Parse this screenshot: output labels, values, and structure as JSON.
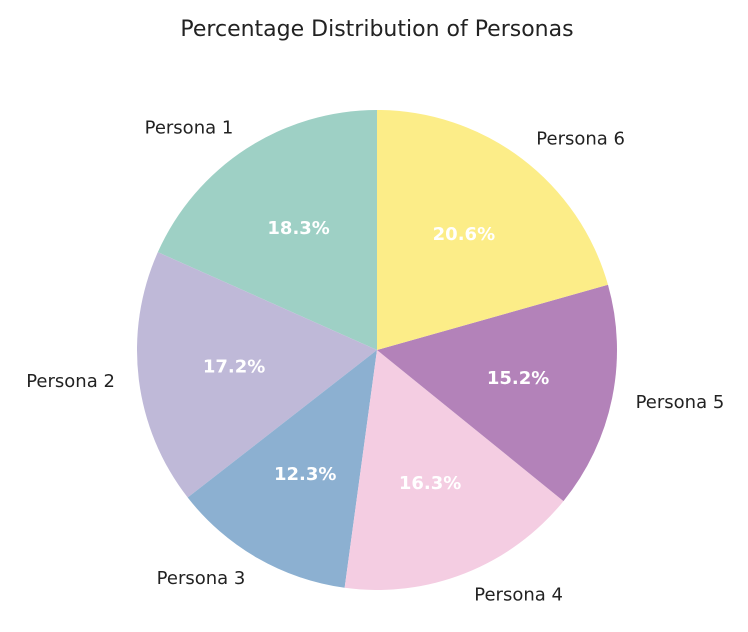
{
  "chart_data": {
    "type": "pie",
    "title": "Percentage Distribution of Personas",
    "categories": [
      "Persona 1",
      "Persona 2",
      "Persona 3",
      "Persona 4",
      "Persona 5",
      "Persona 6"
    ],
    "values": [
      18.3,
      17.2,
      12.3,
      16.3,
      15.2,
      20.6
    ],
    "value_labels": [
      "18.3%",
      "17.2%",
      "12.3%",
      "16.3%",
      "15.2%",
      "20.6%"
    ],
    "colors": [
      "#9ed0c5",
      "#bfb9d8",
      "#8cb0d1",
      "#f4cde2",
      "#b382b9",
      "#fced88"
    ]
  }
}
